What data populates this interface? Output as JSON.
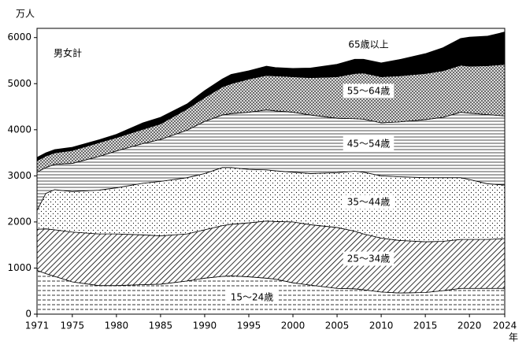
{
  "chart_data": {
    "type": "stacked-area",
    "y_label": "万人",
    "x_unit": "年",
    "annotation": "男女計",
    "x": [
      1971,
      1972,
      1973,
      1975,
      1978,
      1980,
      1983,
      1985,
      1988,
      1990,
      1992,
      1993,
      1995,
      1997,
      1998,
      2000,
      2002,
      2005,
      2007,
      2008,
      2010,
      2012,
      2015,
      2017,
      2019,
      2020,
      2022,
      2024
    ],
    "series": [
      {
        "name": "15～24歳",
        "color": "#000000",
        "values": [
          950,
          880,
          820,
          700,
          620,
          620,
          640,
          650,
          720,
          780,
          820,
          830,
          810,
          780,
          760,
          680,
          630,
          560,
          550,
          530,
          480,
          460,
          470,
          510,
          560,
          560,
          560,
          560
        ]
      },
      {
        "name": "25～34歳",
        "color": "#000000",
        "values": [
          890,
          970,
          1010,
          1080,
          1120,
          1120,
          1080,
          1050,
          1020,
          1050,
          1100,
          1120,
          1170,
          1240,
          1250,
          1320,
          1310,
          1320,
          1250,
          1210,
          1170,
          1140,
          1100,
          1070,
          1060,
          1060,
          1060,
          1080
        ]
      },
      {
        "name": "35～44歳",
        "color": "#000000",
        "values": [
          410,
          770,
          870,
          880,
          950,
          1000,
          1120,
          1180,
          1220,
          1220,
          1260,
          1230,
          1160,
          1110,
          1100,
          1080,
          1110,
          1190,
          1300,
          1340,
          1350,
          1380,
          1390,
          1380,
          1340,
          1300,
          1210,
          1160
        ]
      },
      {
        "name": "45～54歳",
        "color": "#000000",
        "values": [
          830,
          560,
          550,
          610,
          730,
          800,
          860,
          910,
          1030,
          1130,
          1140,
          1170,
          1240,
          1300,
          1300,
          1300,
          1270,
          1180,
          1140,
          1150,
          1150,
          1190,
          1260,
          1310,
          1420,
          1440,
          1500,
          1500
        ]
      },
      {
        "name": "55～64歳",
        "color": "#000000",
        "values": [
          250,
          250,
          250,
          280,
          300,
          290,
          310,
          340,
          460,
          520,
          610,
          650,
          720,
          750,
          760,
          770,
          810,
          900,
          980,
          1000,
          1000,
          1000,
          1000,
          1010,
          1020,
          1020,
          1060,
          1120
        ]
      },
      {
        "name": "65歳以上",
        "color": "#000000",
        "values": [
          70,
          70,
          70,
          70,
          60,
          70,
          140,
          140,
          110,
          150,
          170,
          200,
          180,
          200,
          180,
          180,
          210,
          270,
          310,
          300,
          300,
          350,
          430,
          500,
          580,
          630,
          640,
          700
        ]
      }
    ],
    "xlim": [
      1971,
      2024
    ],
    "xticks": [
      1971,
      1975,
      1980,
      1985,
      1990,
      1995,
      2000,
      2005,
      2010,
      2015,
      2020,
      2024
    ],
    "ylim": [
      0,
      6200
    ],
    "yticks": [
      0,
      1000,
      2000,
      3000,
      4000,
      5000,
      6000
    ]
  }
}
